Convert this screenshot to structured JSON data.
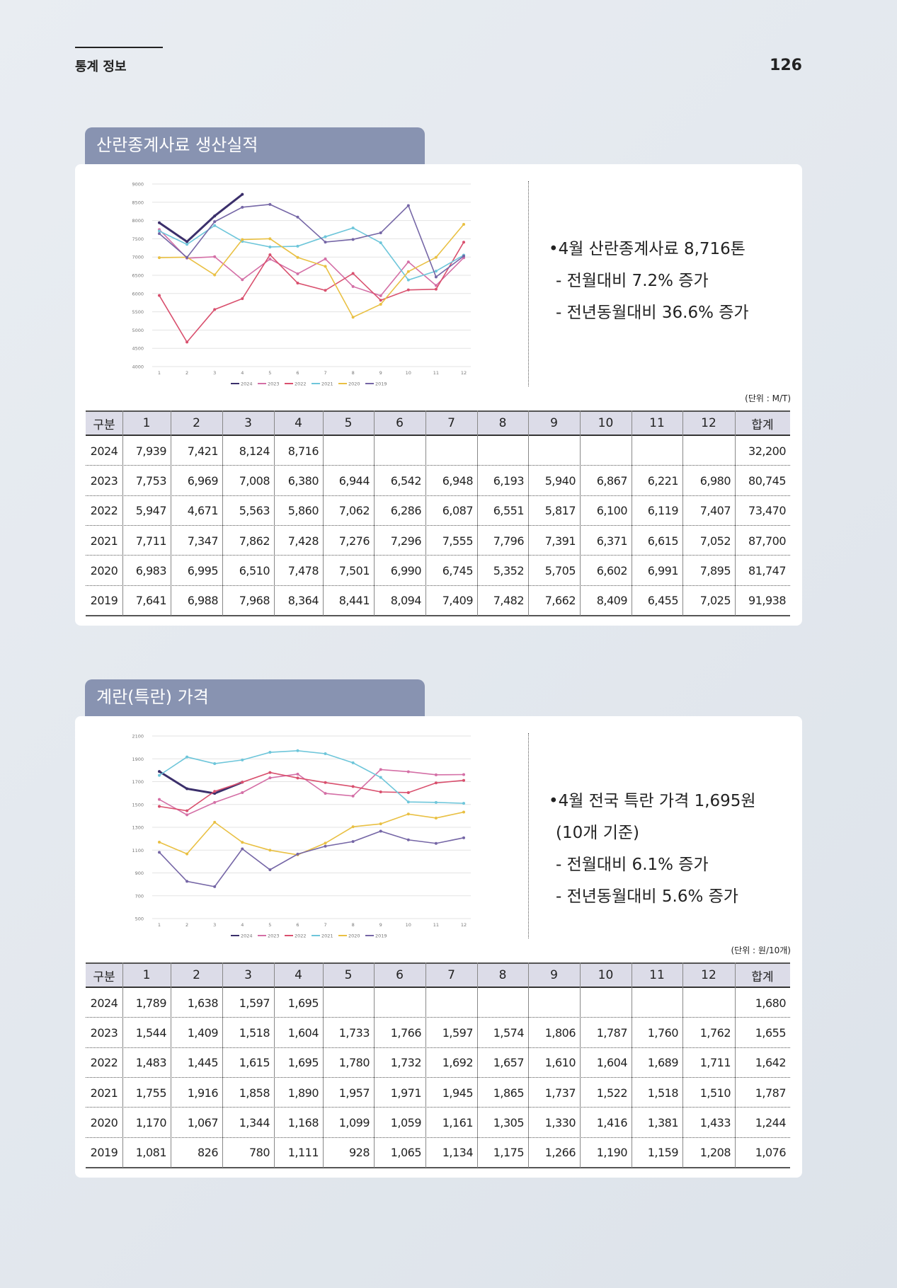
{
  "header": {
    "section": "통계 정보",
    "page": "126"
  },
  "chart_data": [
    {
      "type": "line",
      "categories": [
        "1",
        "2",
        "3",
        "4",
        "5",
        "6",
        "7",
        "8",
        "9",
        "10",
        "11",
        "12"
      ],
      "ylim": [
        4000,
        9000
      ],
      "yticks": [
        4000,
        4500,
        5000,
        5500,
        6000,
        6500,
        7000,
        7500,
        8000,
        8500,
        9000
      ],
      "grid": true,
      "series": [
        {
          "name": "2024",
          "color": "#3b2f6b",
          "values": [
            7939,
            7421,
            8124,
            8716,
            null,
            null,
            null,
            null,
            null,
            null,
            null,
            null
          ]
        },
        {
          "name": "2023",
          "color": "#d46fa6",
          "values": [
            7753,
            6969,
            7008,
            6380,
            6944,
            6542,
            6948,
            6193,
            5940,
            6867,
            6221,
            6980
          ]
        },
        {
          "name": "2022",
          "color": "#d9506e",
          "values": [
            5947,
            4671,
            5563,
            5860,
            7062,
            6286,
            6087,
            6551,
            5817,
            6100,
            6119,
            7407
          ]
        },
        {
          "name": "2021",
          "color": "#6ec6da",
          "values": [
            7711,
            7347,
            7862,
            7428,
            7276,
            7296,
            7555,
            7796,
            7391,
            6371,
            6615,
            7052
          ]
        },
        {
          "name": "2020",
          "color": "#e9c043",
          "values": [
            6983,
            6995,
            6510,
            7478,
            7501,
            6990,
            6745,
            5352,
            5705,
            6602,
            6991,
            7895
          ]
        },
        {
          "name": "2019",
          "color": "#7566a6",
          "values": [
            7641,
            6988,
            7968,
            8364,
            8441,
            8094,
            7409,
            7482,
            7662,
            8409,
            6455,
            7025
          ]
        }
      ]
    },
    {
      "type": "line",
      "categories": [
        "1",
        "2",
        "3",
        "4",
        "5",
        "6",
        "7",
        "8",
        "9",
        "10",
        "11",
        "12"
      ],
      "ylim": [
        500,
        2100
      ],
      "yticks": [
        500,
        700,
        900,
        1100,
        1300,
        1500,
        1700,
        1900,
        2100
      ],
      "grid": true,
      "series": [
        {
          "name": "2024",
          "color": "#3b2f6b",
          "values": [
            1789,
            1638,
            1597,
            1695,
            null,
            null,
            null,
            null,
            null,
            null,
            null,
            null
          ]
        },
        {
          "name": "2023",
          "color": "#d46fa6",
          "values": [
            1544,
            1409,
            1518,
            1604,
            1733,
            1766,
            1597,
            1574,
            1806,
            1787,
            1760,
            1762
          ]
        },
        {
          "name": "2022",
          "color": "#d9506e",
          "values": [
            1483,
            1445,
            1615,
            1695,
            1780,
            1732,
            1692,
            1657,
            1610,
            1604,
            1689,
            1711
          ]
        },
        {
          "name": "2021",
          "color": "#6ec6da",
          "values": [
            1755,
            1916,
            1858,
            1890,
            1957,
            1971,
            1945,
            1865,
            1737,
            1522,
            1518,
            1510
          ]
        },
        {
          "name": "2020",
          "color": "#e9c043",
          "values": [
            1170,
            1067,
            1344,
            1168,
            1099,
            1059,
            1161,
            1305,
            1330,
            1416,
            1381,
            1433
          ]
        },
        {
          "name": "2019",
          "color": "#7566a6",
          "values": [
            1081,
            826,
            780,
            1111,
            928,
            1065,
            1134,
            1175,
            1266,
            1190,
            1159,
            1208
          ]
        }
      ]
    }
  ],
  "sections": [
    {
      "title": "산란종계사료 생산실적",
      "notes": [
        "•4월 산란종계사료 8,716톤",
        "- 전월대비 7.2% 증가",
        "- 전년동월대비 36.6% 증가"
      ],
      "unit": "(단위 : M/T)",
      "table": {
        "header": [
          "구분",
          "1",
          "2",
          "3",
          "4",
          "5",
          "6",
          "7",
          "8",
          "9",
          "10",
          "11",
          "12",
          "합계"
        ],
        "rows": [
          [
            "2024",
            "7,939",
            "7,421",
            "8,124",
            "8,716",
            null,
            null,
            null,
            null,
            null,
            null,
            null,
            null,
            "32,200"
          ],
          [
            "2023",
            "7,753",
            "6,969",
            "7,008",
            "6,380",
            "6,944",
            "6,542",
            "6,948",
            "6,193",
            "5,940",
            "6,867",
            "6,221",
            "6,980",
            "80,745"
          ],
          [
            "2022",
            "5,947",
            "4,671",
            "5,563",
            "5,860",
            "7,062",
            "6,286",
            "6,087",
            "6,551",
            "5,817",
            "6,100",
            "6,119",
            "7,407",
            "73,470"
          ],
          [
            "2021",
            "7,711",
            "7,347",
            "7,862",
            "7,428",
            "7,276",
            "7,296",
            "7,555",
            "7,796",
            "7,391",
            "6,371",
            "6,615",
            "7,052",
            "87,700"
          ],
          [
            "2020",
            "6,983",
            "6,995",
            "6,510",
            "7,478",
            "7,501",
            "6,990",
            "6,745",
            "5,352",
            "5,705",
            "6,602",
            "6,991",
            "7,895",
            "81,747"
          ],
          [
            "2019",
            "7,641",
            "6,988",
            "7,968",
            "8,364",
            "8,441",
            "8,094",
            "7,409",
            "7,482",
            "7,662",
            "8,409",
            "6,455",
            "7,025",
            "91,938"
          ]
        ]
      }
    },
    {
      "title": "계란(특란) 가격",
      "notes": [
        "•4월 전국 특란 가격 1,695원",
        "(10개 기준)",
        "- 전월대비 6.1% 증가",
        "- 전년동월대비 5.6% 증가"
      ],
      "unit": "(단위 : 원/10개)",
      "table": {
        "header": [
          "구분",
          "1",
          "2",
          "3",
          "4",
          "5",
          "6",
          "7",
          "8",
          "9",
          "10",
          "11",
          "12",
          "합계"
        ],
        "rows": [
          [
            "2024",
            "1,789",
            "1,638",
            "1,597",
            "1,695",
            null,
            null,
            null,
            null,
            null,
            null,
            null,
            null,
            "1,680"
          ],
          [
            "2023",
            "1,544",
            "1,409",
            "1,518",
            "1,604",
            "1,733",
            "1,766",
            "1,597",
            "1,574",
            "1,806",
            "1,787",
            "1,760",
            "1,762",
            "1,655"
          ],
          [
            "2022",
            "1,483",
            "1,445",
            "1,615",
            "1,695",
            "1,780",
            "1,732",
            "1,692",
            "1,657",
            "1,610",
            "1,604",
            "1,689",
            "1,711",
            "1,642"
          ],
          [
            "2021",
            "1,755",
            "1,916",
            "1,858",
            "1,890",
            "1,957",
            "1,971",
            "1,945",
            "1,865",
            "1,737",
            "1,522",
            "1,518",
            "1,510",
            "1,787"
          ],
          [
            "2020",
            "1,170",
            "1,067",
            "1,344",
            "1,168",
            "1,099",
            "1,059",
            "1,161",
            "1,305",
            "1,330",
            "1,416",
            "1,381",
            "1,433",
            "1,244"
          ],
          [
            "2019",
            "1,081",
            "826",
            "780",
            "1,111",
            "928",
            "1,065",
            "1,134",
            "1,175",
            "1,266",
            "1,190",
            "1,159",
            "1,208",
            "1,076"
          ]
        ]
      }
    }
  ]
}
